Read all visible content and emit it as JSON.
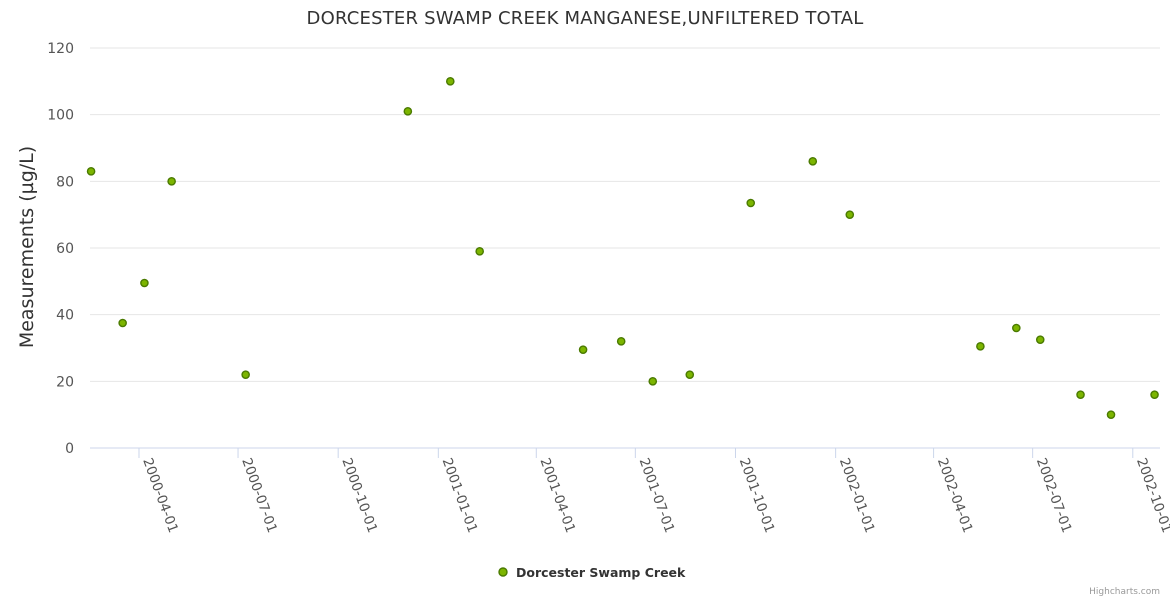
{
  "chart_data": {
    "type": "scatter",
    "title": "DORCESTER SWAMP CREEK MANGANESE,UNFILTERED TOTAL",
    "xlabel": "",
    "ylabel": "Measurements (µg/L)",
    "ylim": [
      0,
      120
    ],
    "yticks": [
      0,
      20,
      40,
      60,
      80,
      100,
      120
    ],
    "xlim": [
      "2000-02-16",
      "2002-10-26"
    ],
    "xticks": [
      "2000-04-01",
      "2000-07-01",
      "2000-10-01",
      "2001-01-01",
      "2001-04-01",
      "2001-07-01",
      "2001-10-01",
      "2002-01-01",
      "2002-04-01",
      "2002-07-01",
      "2002-10-01"
    ],
    "grid": true,
    "legend_position": "bottom-center",
    "series": [
      {
        "name": "Dorcester Swamp Creek",
        "color": "#7cb500",
        "edge_color": "#4a7a00",
        "points": [
          {
            "x": "2000-02-17",
            "y": 83
          },
          {
            "x": "2000-03-17",
            "y": 37.5
          },
          {
            "x": "2000-04-06",
            "y": 49.5
          },
          {
            "x": "2000-05-01",
            "y": 80
          },
          {
            "x": "2000-07-08",
            "y": 22
          },
          {
            "x": "2000-12-04",
            "y": 101
          },
          {
            "x": "2001-01-12",
            "y": 110
          },
          {
            "x": "2001-02-08",
            "y": 59
          },
          {
            "x": "2001-05-14",
            "y": 29.5
          },
          {
            "x": "2001-06-18",
            "y": 32
          },
          {
            "x": "2001-07-17",
            "y": 20
          },
          {
            "x": "2001-08-20",
            "y": 22
          },
          {
            "x": "2001-10-15",
            "y": 73.5
          },
          {
            "x": "2001-12-11",
            "y": 86
          },
          {
            "x": "2002-01-14",
            "y": 70
          },
          {
            "x": "2002-05-14",
            "y": 30.5
          },
          {
            "x": "2002-06-16",
            "y": 36
          },
          {
            "x": "2002-07-08",
            "y": 32.5
          },
          {
            "x": "2002-08-14",
            "y": 16
          },
          {
            "x": "2002-09-11",
            "y": 10
          },
          {
            "x": "2002-10-21",
            "y": 16
          }
        ]
      }
    ]
  },
  "credits": "Highcharts.com"
}
